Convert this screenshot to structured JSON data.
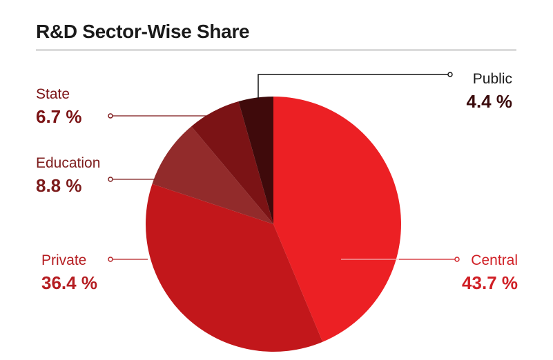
{
  "title": "R&D Sector-Wise Share",
  "chart_data": {
    "type": "pie",
    "title": "R&D Sector-Wise Share",
    "slices": [
      {
        "label": "Central",
        "value": 43.7,
        "display": "43.7 %",
        "color": "#ec2024",
        "label_color": "#d01f25"
      },
      {
        "label": "Private",
        "value": 36.4,
        "display": "36.4 %",
        "color": "#c2171b",
        "label_color": "#b51d21"
      },
      {
        "label": "Education",
        "value": 8.8,
        "display": "8.8 %",
        "color": "#922b2b",
        "label_color": "#7d1c1c"
      },
      {
        "label": "State",
        "value": 6.7,
        "display": "6.7 %",
        "color": "#7b1315",
        "label_color": "#7b1315"
      },
      {
        "label": "Public",
        "value": 4.4,
        "display": "4.4 %",
        "color": "#3f0a0b",
        "label_color": "#3a0a0b"
      }
    ],
    "start_angle": "12 o'clock",
    "direction": "clockwise"
  }
}
